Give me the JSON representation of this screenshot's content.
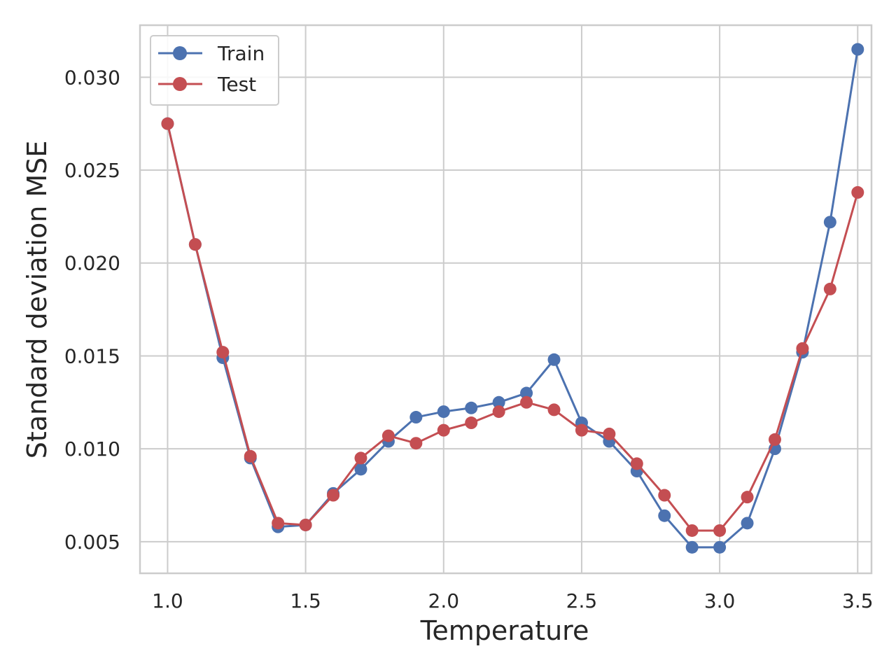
{
  "chart_data": {
    "type": "line",
    "title": "",
    "xlabel": "Temperature",
    "ylabel": "Standard deviation MSE",
    "xlim": [
      0.9,
      3.55
    ],
    "ylim": [
      0.0033,
      0.0328
    ],
    "xticks": [
      "1.0",
      "1.5",
      "2.0",
      "2.5",
      "3.0",
      "3.5"
    ],
    "yticks": [
      "0.005",
      "0.010",
      "0.015",
      "0.020",
      "0.025",
      "0.030"
    ],
    "grid": true,
    "legend_position": "upper-left",
    "x": [
      1.0,
      1.1,
      1.2,
      1.3,
      1.4,
      1.5,
      1.6,
      1.7,
      1.8,
      1.9,
      2.0,
      2.1,
      2.2,
      2.3,
      2.4,
      2.5,
      2.6,
      2.7,
      2.8,
      2.9,
      3.0,
      3.1,
      3.2,
      3.3,
      3.4,
      3.5
    ],
    "series": [
      {
        "name": "Train",
        "color": "#4c72b0",
        "values": [
          0.0275,
          0.021,
          0.0149,
          0.0095,
          0.0058,
          0.0059,
          0.0076,
          0.0089,
          0.0104,
          0.0117,
          0.012,
          0.0122,
          0.0125,
          0.013,
          0.0148,
          0.0114,
          0.0104,
          0.0088,
          0.0064,
          0.0047,
          0.0047,
          0.006,
          0.01,
          0.0152,
          0.0222,
          0.0315
        ]
      },
      {
        "name": "Test",
        "color": "#c44e52",
        "values": [
          0.0275,
          0.021,
          0.0152,
          0.0096,
          0.006,
          0.0059,
          0.0075,
          0.0095,
          0.0107,
          0.0103,
          0.011,
          0.0114,
          0.012,
          0.0125,
          0.0121,
          0.011,
          0.0108,
          0.0092,
          0.0075,
          0.0056,
          0.0056,
          0.0074,
          0.0105,
          0.0154,
          0.0186,
          0.0238
        ]
      }
    ]
  }
}
